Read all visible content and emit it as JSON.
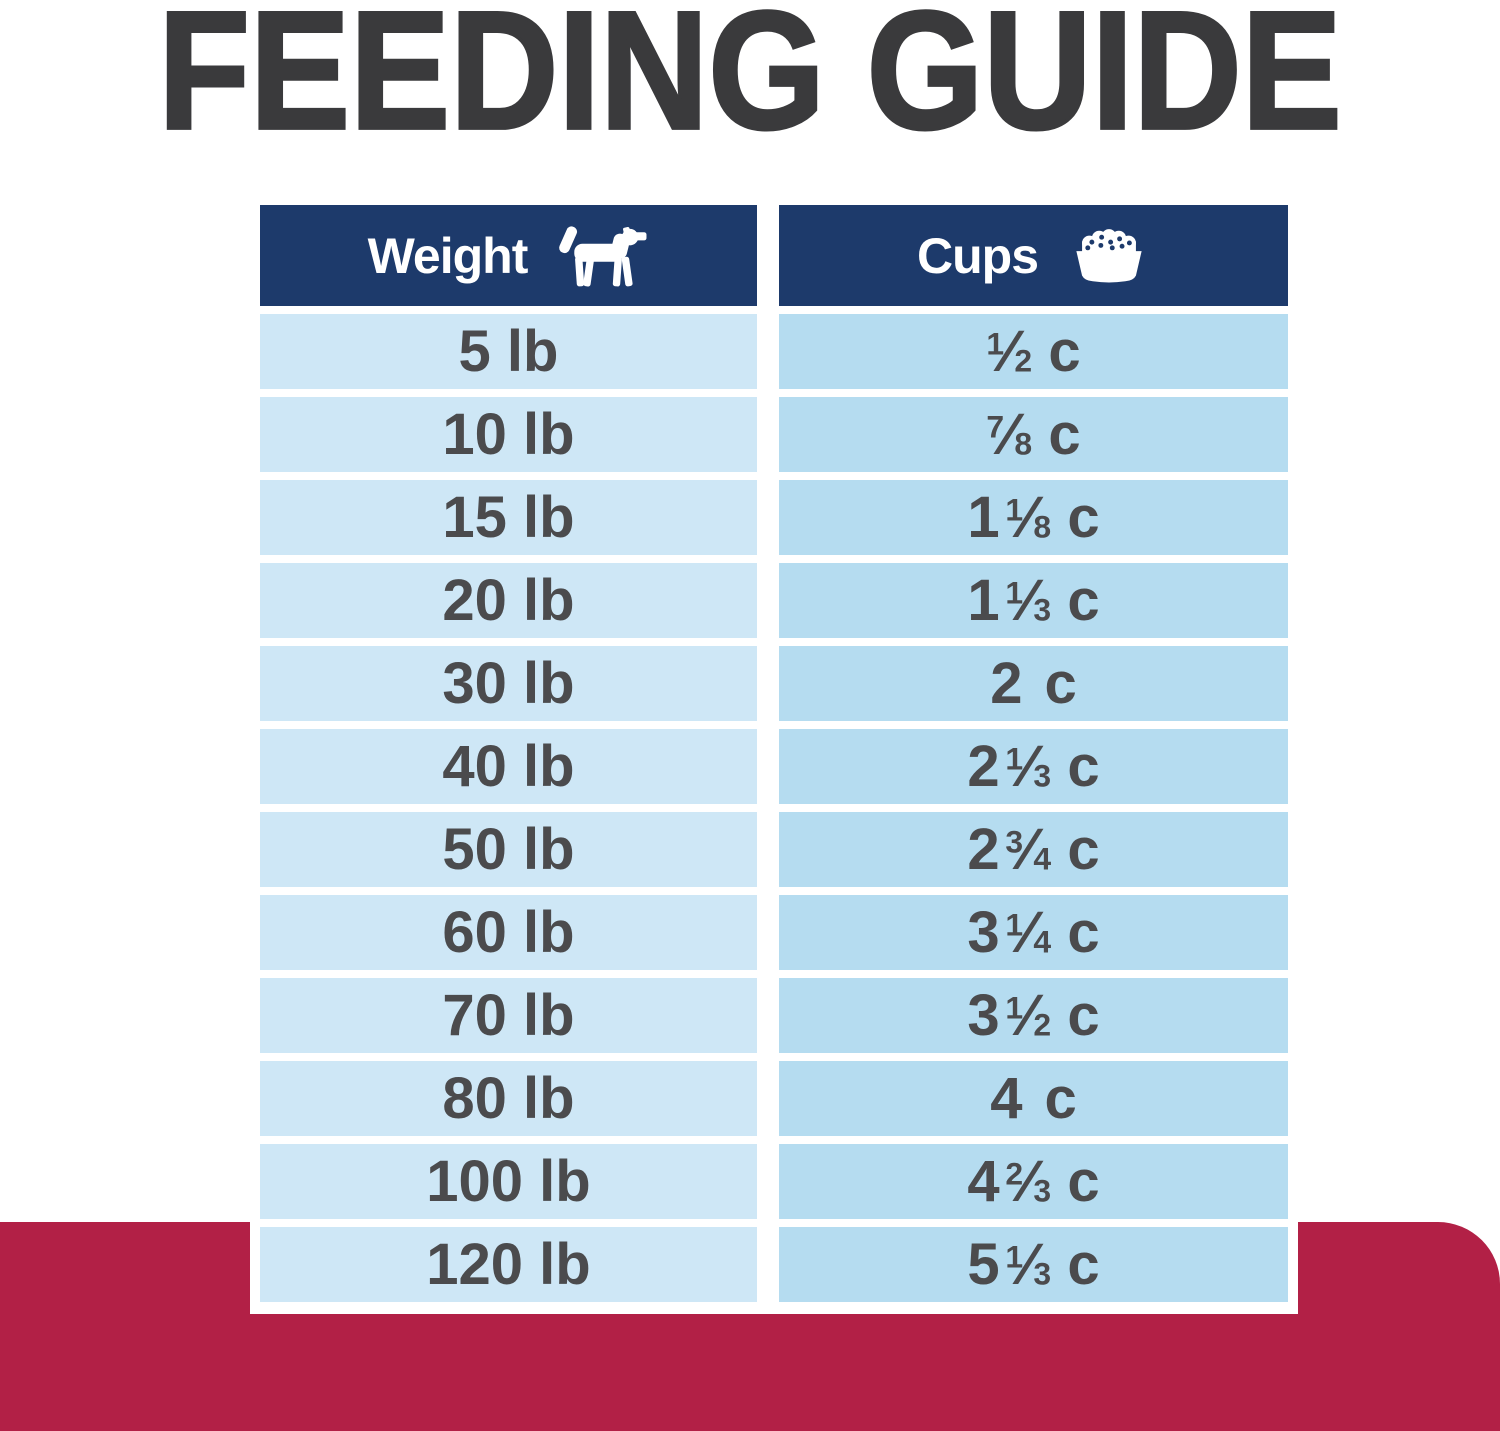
{
  "title": "FEEDING GUIDE",
  "colors": {
    "header_navy": "#1d3a6b",
    "row_left_blue": "#cee7f6",
    "row_right_blue": "#b5dcf0",
    "red_band": "#b22046",
    "title_text": "#3a3a3c",
    "row_text": "#4b4b4d"
  },
  "table": {
    "columns": [
      {
        "label": "Weight",
        "icon": "dog-icon"
      },
      {
        "label": "Cups",
        "icon": "food-bowl-icon"
      }
    ],
    "rows": [
      {
        "weight": "5 lb",
        "cups": {
          "whole": "",
          "num": "1",
          "den": "2",
          "unit": "c"
        }
      },
      {
        "weight": "10 lb",
        "cups": {
          "whole": "",
          "num": "7",
          "den": "8",
          "unit": "c"
        }
      },
      {
        "weight": "15 lb",
        "cups": {
          "whole": "1",
          "num": "1",
          "den": "8",
          "unit": "c"
        }
      },
      {
        "weight": "20 lb",
        "cups": {
          "whole": "1",
          "num": "1",
          "den": "3",
          "unit": "c"
        }
      },
      {
        "weight": "30 lb",
        "cups": {
          "whole": "2",
          "num": "",
          "den": "",
          "unit": "c"
        }
      },
      {
        "weight": "40 lb",
        "cups": {
          "whole": "2",
          "num": "1",
          "den": "3",
          "unit": "c"
        }
      },
      {
        "weight": "50 lb",
        "cups": {
          "whole": "2",
          "num": "3",
          "den": "4",
          "unit": "c"
        }
      },
      {
        "weight": "60 lb",
        "cups": {
          "whole": "3",
          "num": "1",
          "den": "4",
          "unit": "c"
        }
      },
      {
        "weight": "70 lb",
        "cups": {
          "whole": "3",
          "num": "1",
          "den": "2",
          "unit": "c"
        }
      },
      {
        "weight": "80 lb",
        "cups": {
          "whole": "4",
          "num": "",
          "den": "",
          "unit": "c"
        }
      },
      {
        "weight": "100 lb",
        "cups": {
          "whole": "4",
          "num": "2",
          "den": "3",
          "unit": "c"
        }
      },
      {
        "weight": "120 lb",
        "cups": {
          "whole": "5",
          "num": "1",
          "den": "3",
          "unit": "c"
        }
      }
    ]
  },
  "chart_data": {
    "type": "table",
    "title": "FEEDING GUIDE",
    "columns": [
      "Weight",
      "Cups"
    ],
    "rows": [
      [
        "5 lb",
        "1/2 c"
      ],
      [
        "10 lb",
        "7/8 c"
      ],
      [
        "15 lb",
        "1 1/8 c"
      ],
      [
        "20 lb",
        "1 1/3 c"
      ],
      [
        "30 lb",
        "2 c"
      ],
      [
        "40 lb",
        "2 1/3 c"
      ],
      [
        "50 lb",
        "2 3/4 c"
      ],
      [
        "60 lb",
        "3 1/4 c"
      ],
      [
        "70 lb",
        "3 1/2 c"
      ],
      [
        "80 lb",
        "4 c"
      ],
      [
        "100 lb",
        "4 2/3 c"
      ],
      [
        "120 lb",
        "5 1/3 c"
      ]
    ]
  }
}
